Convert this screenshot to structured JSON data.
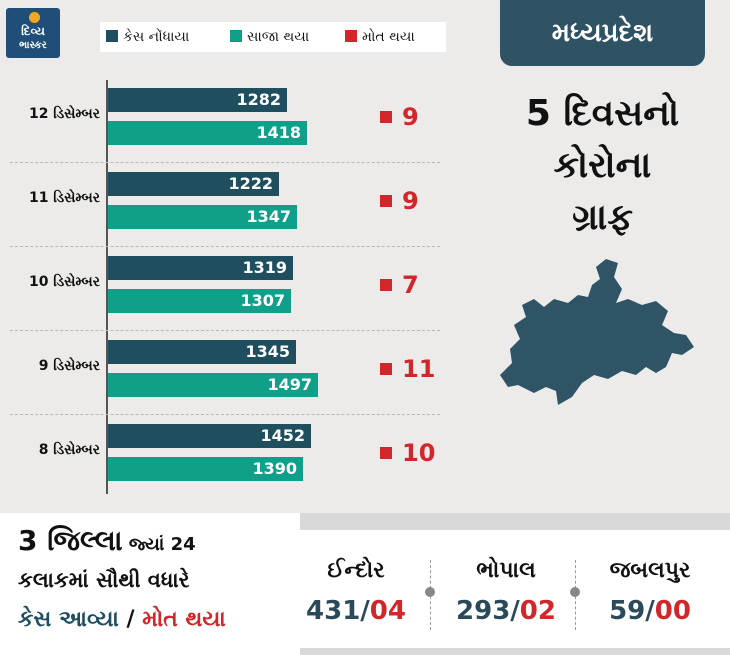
{
  "logo": {
    "line1": "દિવ્ય",
    "line2": "ભાસ્કર"
  },
  "legend": [
    {
      "label": "કેસ નોંધાયા",
      "color": "#1f4e5f"
    },
    {
      "label": "સાજા થયા",
      "color": "#10a08a"
    },
    {
      "label": "મોત થયા",
      "color": "#d1262a"
    }
  ],
  "header": {
    "state": "મધ્યપ્રદેશ",
    "headline_lines": [
      "5 દિવસનો",
      "કોરોના",
      "ગ્રાફ"
    ]
  },
  "map_icon": "madhya-pradesh-map",
  "chart_data": {
    "type": "bar",
    "orientation": "horizontal",
    "categories": [
      "12 ડિસેમ્બર",
      "11 ડિસેમ્બર",
      "10 ડિસેમ્બર",
      "9 ડિસેમ્બર",
      "8 ડિસેમ્બર"
    ],
    "series": [
      {
        "name": "કેસ નોંધાયા",
        "values": [
          1282,
          1222,
          1319,
          1345,
          1452
        ],
        "color": "#1f4e5f"
      },
      {
        "name": "સાજા થયા",
        "values": [
          1418,
          1347,
          1307,
          1497,
          1390
        ],
        "color": "#10a08a"
      },
      {
        "name": "મોત થયા",
        "values": [
          9,
          9,
          7,
          11,
          10
        ],
        "color": "#d1262a"
      }
    ],
    "title": "5 દિવસનો કોરોના ગ્રાફ",
    "xlim": [
      0,
      1700
    ],
    "grid": false,
    "legend_position": "top"
  },
  "footer": {
    "line1_big": "3 જિલ્લા",
    "line1_small": " જ્યાં 24",
    "line2": "કલાકમાં સૌથી વધારે",
    "line3_cases": "કેસ આવ્યા",
    "line3_sep": " / ",
    "line3_deaths": "મોત થયા",
    "cities": [
      {
        "name": "ઈન્દોર",
        "cases": "431",
        "deaths": "04"
      },
      {
        "name": "ભોપાલ",
        "cases": "293",
        "deaths": "02"
      },
      {
        "name": "જબલપુર",
        "cases": "59",
        "deaths": "00"
      }
    ],
    "number_sep": "/"
  }
}
